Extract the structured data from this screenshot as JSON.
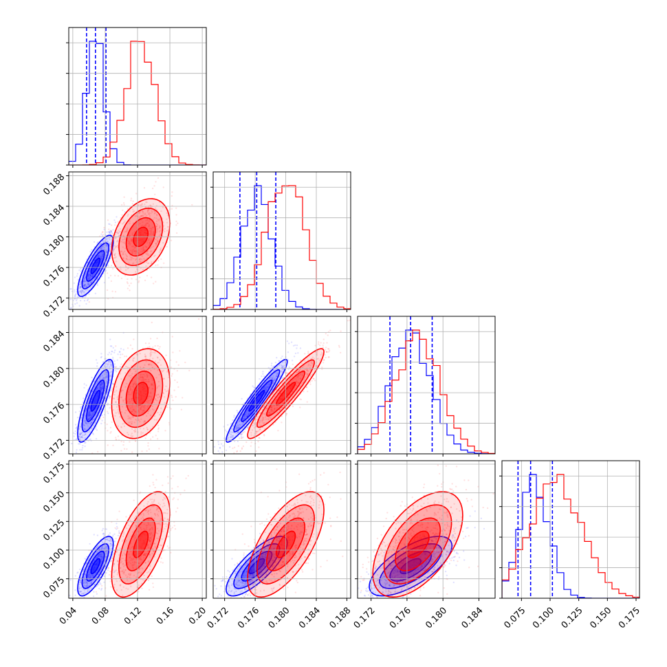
{
  "chart_data": {
    "type": "corner",
    "grid": true,
    "series": [
      {
        "name": "",
        "color": "#0000ff"
      },
      {
        "name": "",
        "color": "#ff0000"
      }
    ],
    "parameters": [
      {
        "range": [
          0.035,
          0.205
        ],
        "ticks": [
          0.04,
          0.08,
          0.12,
          0.16,
          0.2
        ],
        "tick_labels": [
          "0.04",
          "0.08",
          "0.12",
          "0.16",
          "0.20"
        ],
        "blue": {
          "mean": 0.068,
          "sd": 0.011,
          "quantiles": [
            0.057,
            0.068,
            0.081
          ]
        },
        "red": {
          "mean": 0.124,
          "sd": 0.018
        }
      },
      {
        "range": [
          0.1705,
          0.1885
        ],
        "ticks": [
          0.172,
          0.176,
          0.18,
          0.184,
          0.188
        ],
        "tick_labels": [
          "0.172",
          "0.176",
          "0.180",
          "0.184",
          "0.188"
        ],
        "blue": {
          "mean": 0.1762,
          "sd": 0.002,
          "quantiles": [
            0.174,
            0.1762,
            0.1787
          ]
        },
        "red": {
          "mean": 0.18,
          "sd": 0.0025
        }
      },
      {
        "range": [
          0.1705,
          0.1858
        ],
        "ticks": [
          0.172,
          0.176,
          0.18,
          0.184
        ],
        "tick_labels": [
          "0.172",
          "0.176",
          "0.180",
          "0.184"
        ],
        "blue": {
          "mean": 0.1764,
          "sd": 0.0023,
          "quantiles": [
            0.1741,
            0.1764,
            0.1788
          ]
        },
        "red": {
          "mean": 0.1772,
          "sd": 0.0025
        }
      },
      {
        "range": [
          0.058,
          0.178
        ],
        "ticks": [
          0.075,
          0.1,
          0.125,
          0.15,
          0.175
        ],
        "tick_labels": [
          "0.075",
          "0.100",
          "0.125",
          "0.150",
          "0.175"
        ],
        "blue": {
          "mean": 0.086,
          "sd": 0.013,
          "quantiles": [
            0.072,
            0.083,
            0.102
          ]
        },
        "red": {
          "mean": 0.105,
          "sd": 0.023
        }
      }
    ],
    "correlations": {
      "blue": {
        "1-0": 0.8,
        "2-0": 0.8,
        "2-1": 0.95,
        "3-0": 0.75,
        "3-1": 0.78,
        "3-2": 0.68
      },
      "red": {
        "1-0": 0.35,
        "2-0": 0.25,
        "2-1": 0.93,
        "3-0": 0.6,
        "3-1": 0.65,
        "3-2": 0.55
      }
    },
    "contour_levels_sigma": [
      0.5,
      1.0,
      1.5,
      2.0
    ]
  }
}
